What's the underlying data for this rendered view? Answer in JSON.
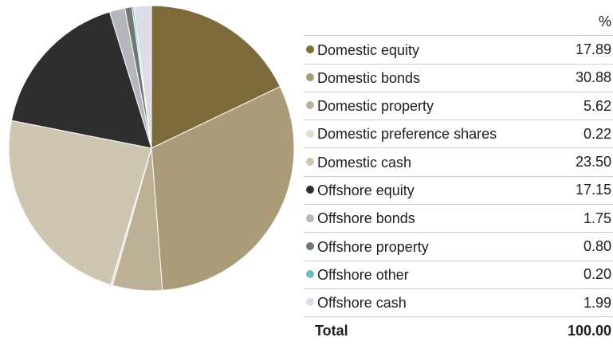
{
  "chart_data": {
    "type": "pie",
    "unit_header": "%",
    "slices": [
      {
        "label": "Domestic equity",
        "value": 17.89,
        "display": "17.89",
        "color": "#7d6b3b"
      },
      {
        "label": "Domestic bonds",
        "value": 30.88,
        "display": "30.88",
        "color": "#aa9c78"
      },
      {
        "label": "Domestic property",
        "value": 5.62,
        "display": "5.62",
        "color": "#bcb096"
      },
      {
        "label": "Domestic preference shares",
        "value": 0.22,
        "display": "0.22",
        "color": "#e3ded4"
      },
      {
        "label": "Domestic cash",
        "value": 23.5,
        "display": "23.50",
        "color": "#cfc6b1"
      },
      {
        "label": "Offshore equity",
        "value": 17.15,
        "display": "17.15",
        "color": "#2e2e2e"
      },
      {
        "label": "Offshore bonds",
        "value": 1.75,
        "display": "1.75",
        "color": "#b6b6be"
      },
      {
        "label": "Offshore property",
        "value": 0.8,
        "display": "0.80",
        "color": "#6e7876"
      },
      {
        "label": "Offshore other",
        "value": 0.2,
        "display": "0.20",
        "color": "#6fbcb8"
      },
      {
        "label": "Offshore cash",
        "value": 1.99,
        "display": "1.99",
        "color": "#dcdde6"
      }
    ],
    "total_label": "Total",
    "total_value": "100.00"
  }
}
